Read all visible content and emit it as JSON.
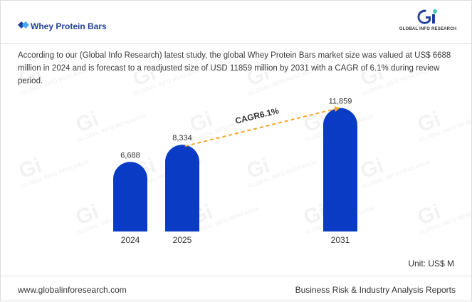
{
  "header": {
    "title": "Whey Protein Bars",
    "logo_text": "GLOBAL INFO RESEARCH"
  },
  "description": "According to our (Global Info Research) latest study, the global Whey Protein Bars market size was valued at US$ 6688 million in 2024 and is forecast to a readjusted size of USD 11859 million by 2031 with a CAGR of 6.1% during review period.",
  "watermark_text": "GLOBAL INFO RESEARCH",
  "colors": {
    "bar": "#0a3bc4",
    "arrow": "#f5a623",
    "title": "#1f3f99"
  },
  "chart_data": {
    "type": "bar",
    "categories": [
      "2024",
      "2025",
      "2031"
    ],
    "values": [
      6688,
      8334,
      11859
    ],
    "value_labels": [
      "6,688",
      "8,334",
      "11,859"
    ],
    "title": "",
    "xlabel": "",
    "ylabel": "",
    "ylim": [
      0,
      13000
    ],
    "grid": false,
    "annotation": {
      "text": "CAGR6.1%",
      "from": "2025",
      "to": "2031"
    }
  },
  "unit_label": "Unit: US$ M",
  "footer": {
    "website": "www.globalinforesearch.com",
    "tagline": "Business Risk & Industry Analysis Reports"
  }
}
